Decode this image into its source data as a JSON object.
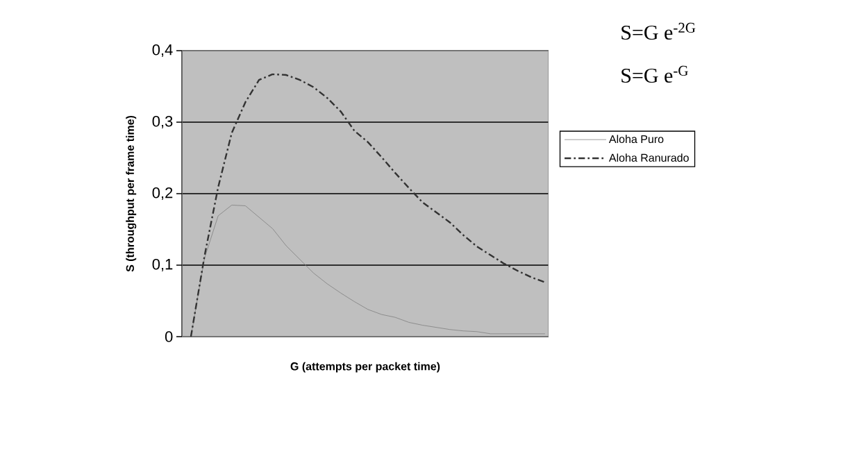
{
  "chart_data": {
    "type": "line",
    "xlabel": "G (attempts per packet time)",
    "ylabel": "S (throughput per frame time)",
    "annotations": [
      "S=G e$^{-2G}$",
      "S=G e$^{-G}$"
    ],
    "categories": [
      null,
      null,
      null,
      null,
      null,
      null,
      null,
      null,
      null,
      null,
      null,
      null,
      null,
      null,
      null,
      null,
      null,
      null,
      null,
      null,
      null,
      null,
      null,
      null,
      null,
      null,
      null
    ],
    "series": [
      {
        "name": "Aloha Puro",
        "color": "#808080",
        "line_style": "solid",
        "values": [
          0,
          0.11,
          0.169,
          0.184,
          0.183,
          0.167,
          0.151,
          0.127,
          0.108,
          0.089,
          0.074,
          0.061,
          0.049,
          0.038,
          0.031,
          0.027,
          0.02,
          0.016,
          0.013,
          0.01,
          0.008,
          0.007,
          0.004,
          0.004,
          0.004,
          0.004,
          0.004
        ]
      },
      {
        "name": "Aloha Ranurado",
        "color": "#333333",
        "line_style": "dashed",
        "values": [
          0,
          0.113,
          0.209,
          0.285,
          0.328,
          0.359,
          0.367,
          0.366,
          0.359,
          0.349,
          0.334,
          0.315,
          0.288,
          0.272,
          0.251,
          0.229,
          0.208,
          0.188,
          0.174,
          0.16,
          0.142,
          0.126,
          0.114,
          0.102,
          0.092,
          0.083,
          0.076
        ]
      }
    ],
    "ylim": [
      0,
      0.4
    ],
    "yticks": [
      0,
      {
        "value": 0.1,
        "label": "0,1"
      },
      {
        "value": 0.2,
        "label": "0,2"
      },
      {
        "value": 0.3,
        "label": "0,3"
      },
      {
        "value": 0.4,
        "label": "0,4"
      }
    ],
    "grid": "y",
    "legend": "right",
    "marker": "none"
  }
}
